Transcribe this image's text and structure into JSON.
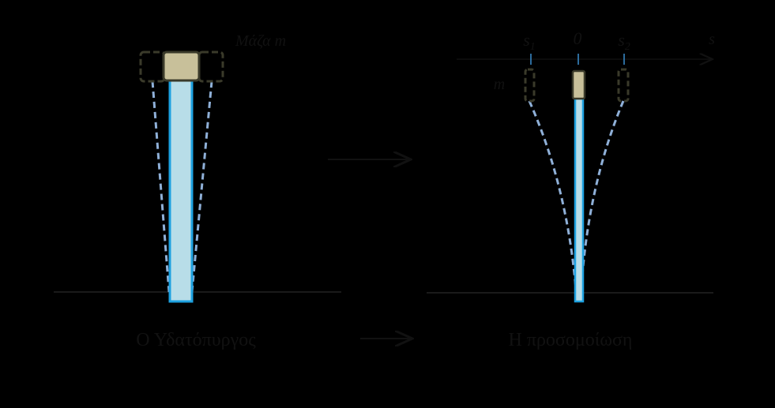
{
  "tower_panel": {
    "mass_label": "Μάζα m",
    "caption": "Ο Υδατόπυργος"
  },
  "model_panel": {
    "axis_label": "s",
    "origin_label": "0",
    "s1_label": "s",
    "s1_sub": "1",
    "s2_label": "s",
    "s2_sub": "2",
    "mass_label": "m",
    "caption": "Η προσομοίωση"
  }
}
